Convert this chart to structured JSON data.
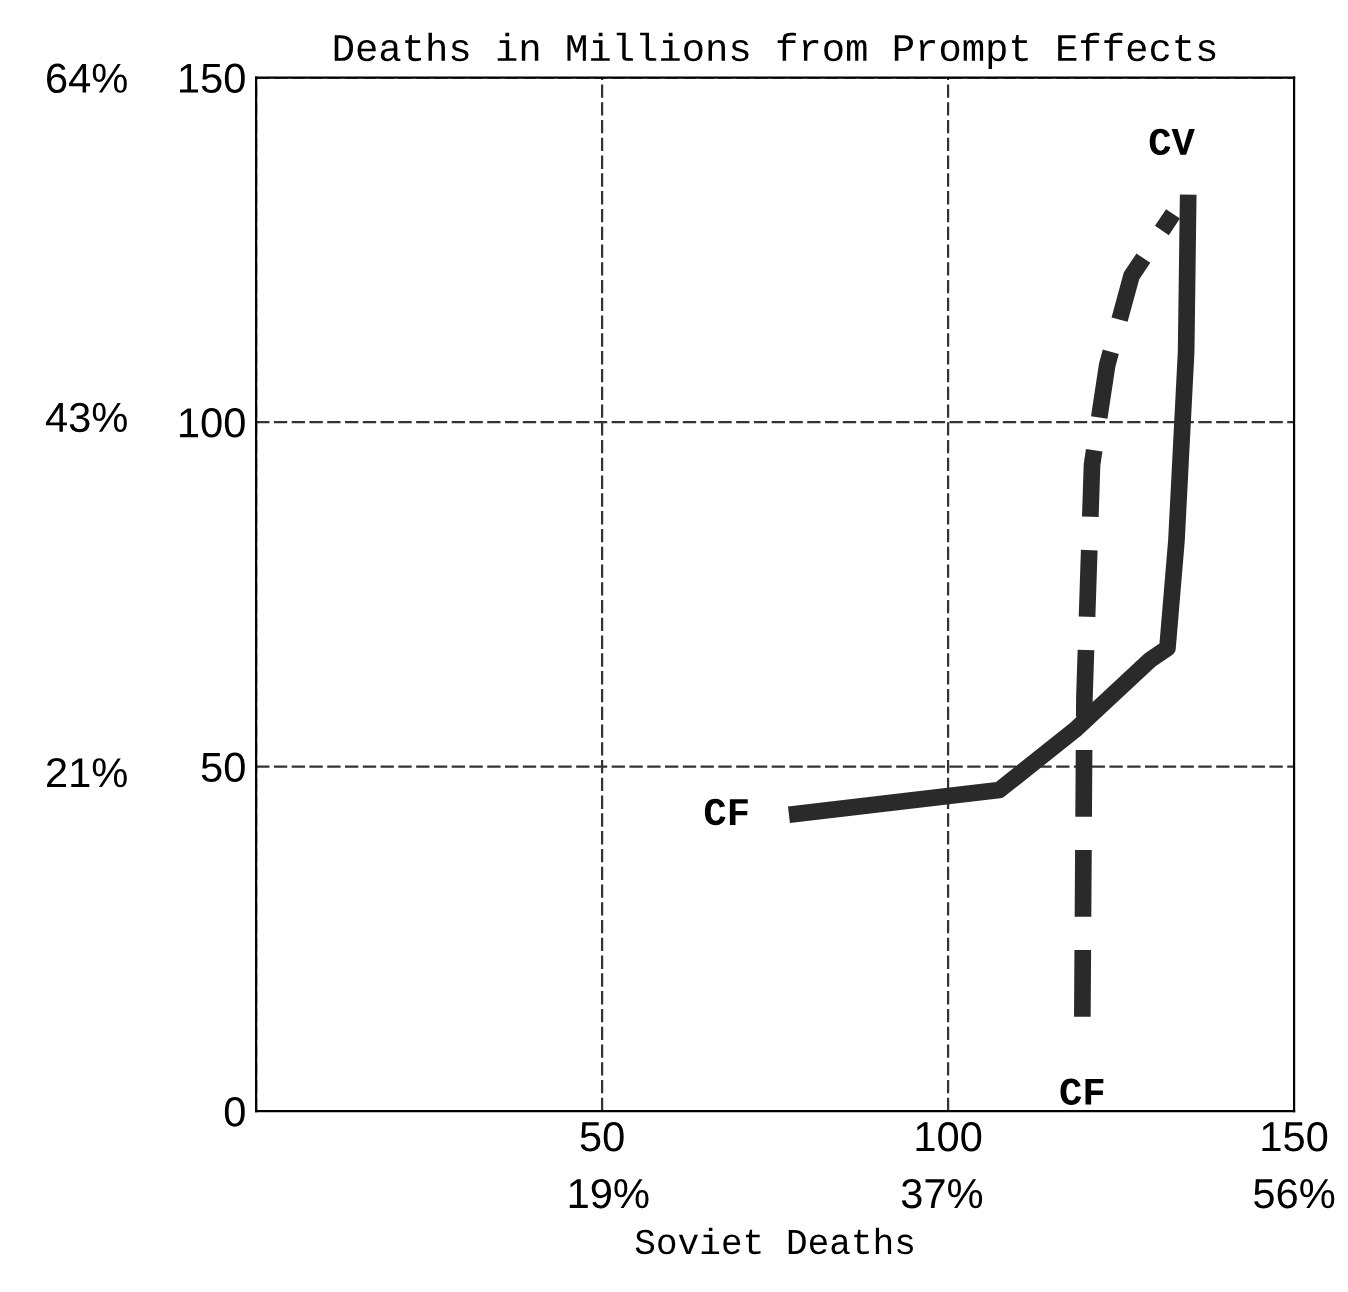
{
  "chart_data": {
    "type": "line",
    "title": "Deaths in Millions from Prompt Effects",
    "xlabel": "Soviet Deaths",
    "xlim": [
      0,
      150
    ],
    "ylim": [
      0,
      150
    ],
    "xticks": [
      {
        "value": 0,
        "label": null
      },
      50,
      100,
      150
    ],
    "yticks": [
      0,
      50,
      100,
      150
    ],
    "x2lim": [
      0,
      56
    ],
    "x2ticks": [
      {
        "value": 19,
        "label": "19%"
      },
      {
        "value": 37,
        "label": "37%"
      },
      {
        "value": 56,
        "label": "56%"
      }
    ],
    "y2lim": [
      0,
      64
    ],
    "y2ticks": [
      {
        "value": 21,
        "label": "21%"
      },
      {
        "value": 43,
        "label": "43%"
      },
      {
        "value": 64,
        "label": "64%"
      }
    ],
    "grid": true,
    "legend": false,
    "marker": "none",
    "series": [
      {
        "color": "#2a2a2a",
        "line_style": "solid",
        "x": [
          77,
          107.4,
          118.3,
          129.2,
          131.7,
          133,
          134.4,
          134.7
        ],
        "values": [
          43,
          46.6,
          55.3,
          65.5,
          67.2,
          82.8,
          110.2,
          133
        ]
      },
      {
        "color": "#2a2a2a",
        "line_style": "dashed",
        "x": [
          119.4,
          119.7,
          120.8,
          123,
          126.5,
          132.5
        ],
        "values": [
          13.7,
          60,
          93.8,
          108.3,
          121.2,
          130.2
        ]
      }
    ],
    "annotations": [
      {
        "text": "CF",
        "x": 77,
        "y": 43
      },
      {
        "text": "CF",
        "x": 119.4,
        "y": 13.7
      },
      {
        "text": "CV",
        "x": 134.7,
        "y": 133
      }
    ]
  }
}
